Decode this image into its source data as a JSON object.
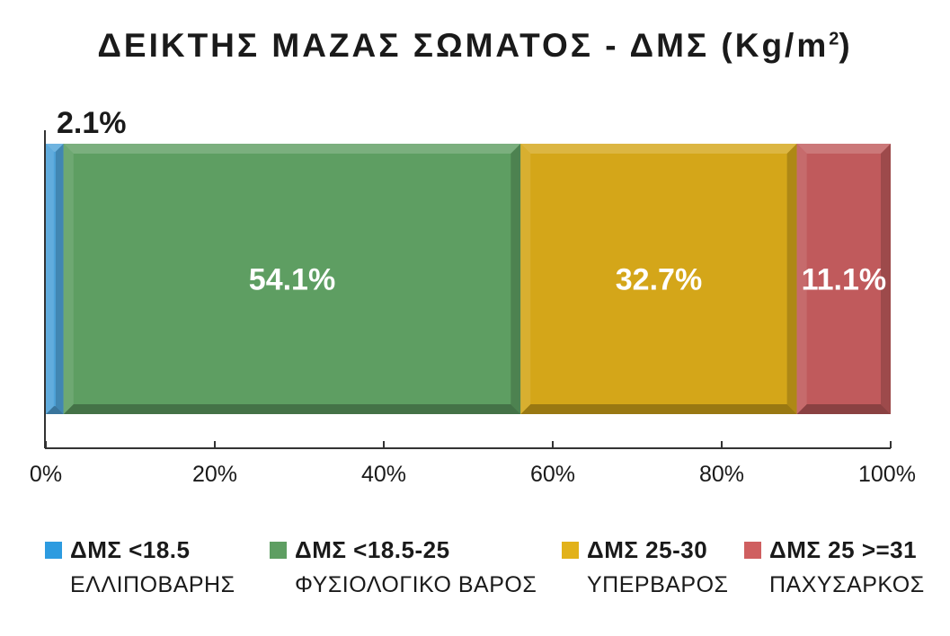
{
  "title": {
    "main": "ΔΕΙΚΤΗΣ ΜΑΖΑΣ ΣΩΜΑΤΟΣ - ΔΜΣ (Kg/m",
    "superscript": "2",
    "close": ")"
  },
  "chart_data": {
    "type": "bar",
    "orientation": "horizontal",
    "stacked": "100%",
    "xlim": [
      0,
      100
    ],
    "x_ticks": [
      "0%",
      "20%",
      "40%",
      "60%",
      "80%",
      "100%"
    ],
    "grid": false,
    "legend_position": "bottom",
    "series": [
      {
        "name": "ΔΜΣ <18.5",
        "description": "ΕΛΛΙΠΟΒΑΡΗΣ",
        "value": 2.1,
        "label": "2.1%",
        "color": "#4fa3d9"
      },
      {
        "name": "ΔΜΣ <18.5-25",
        "description": "ΦΥΣΙΟΛΟΓΙΚΟ ΒΑΡΟΣ",
        "value": 54.1,
        "label": "54.1%",
        "color": "#5e9e62"
      },
      {
        "name": "ΔΜΣ 25-30",
        "description": "ΥΠΕΡΒΑΡΟΣ",
        "value": 32.7,
        "label": "32.7%",
        "color": "#d4a619"
      },
      {
        "name": "ΔΜΣ 25 >=31",
        "description": "ΠΑΧΥΣΑΡΚΟΣ",
        "value": 11.1,
        "label": "11.1%",
        "color": "#c05a5c"
      }
    ]
  },
  "legend": [
    {
      "head": "ΔΜΣ <18.5",
      "sub": "ΕΛΛΙΠΟΒΑΡΗΣ",
      "color": "#2d9be0"
    },
    {
      "head": "ΔΜΣ <18.5-25",
      "sub": "ΦΥΣΙΟΛΟΓΙΚΟ ΒΑΡΟΣ",
      "color": "#5e9e62"
    },
    {
      "head": "ΔΜΣ 25-30",
      "sub": "ΥΠΕΡΒΑΡΟΣ",
      "color": "#e2b21a"
    },
    {
      "head": "ΔΜΣ 25 >=31",
      "sub": "ΠΑΧΥΣΑΡΚΟΣ",
      "color": "#cf5f60"
    }
  ]
}
